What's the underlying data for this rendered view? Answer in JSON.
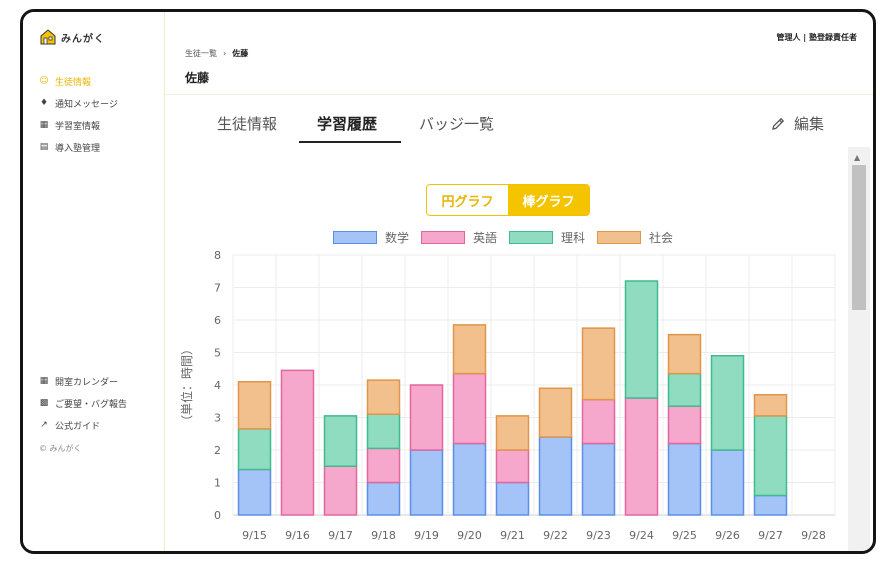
{
  "app": {
    "logo_text": "みんがく"
  },
  "sidebar": {
    "items": [
      {
        "icon": "person-icon",
        "label": "生徒情報",
        "active": true
      },
      {
        "icon": "bell-icon",
        "label": "通知メッセージ",
        "active": false
      },
      {
        "icon": "calendar-icon",
        "label": "学習室情報",
        "active": false
      },
      {
        "icon": "building-icon",
        "label": "導入塾管理",
        "active": false
      }
    ],
    "bottom_items": [
      {
        "icon": "calendar-icon",
        "label": "開室カレンダー"
      },
      {
        "icon": "chat-icon",
        "label": "ご要望・バグ報告"
      },
      {
        "icon": "external-link-icon",
        "label": "公式ガイド"
      }
    ],
    "copyright": "© みんがく"
  },
  "header": {
    "user_info": "管理人 | 塾登録責任者",
    "breadcrumb": {
      "parent": "生徒一覧",
      "separator": "›",
      "current": "佐藤"
    },
    "title": "佐藤"
  },
  "tabs": {
    "items": [
      {
        "label": "生徒情報",
        "active": false
      },
      {
        "label": "学習履歴",
        "active": true
      },
      {
        "label": "バッジ一覧",
        "active": false
      }
    ],
    "edit_label": "編集"
  },
  "chart_toggle": {
    "pie_label": "円グラフ",
    "bar_label": "棒グラフ",
    "selected": "bar"
  },
  "chart_data": {
    "type": "bar",
    "stacked": true,
    "categories": [
      "9/15",
      "9/16",
      "9/17",
      "9/18",
      "9/19",
      "9/20",
      "9/21",
      "9/22",
      "9/23",
      "9/24",
      "9/25",
      "9/26",
      "9/27",
      "9/28"
    ],
    "series": [
      {
        "name": "数学",
        "color": "#a4c3f7",
        "border": "#5b8fe6",
        "values": [
          1.4,
          0,
          0,
          1.0,
          2.0,
          2.2,
          1.0,
          2.4,
          2.2,
          0,
          2.2,
          2.0,
          0.6,
          0
        ]
      },
      {
        "name": "英語",
        "color": "#f5a8cb",
        "border": "#e3669e",
        "values": [
          0,
          4.45,
          1.5,
          1.05,
          2.0,
          2.15,
          1.0,
          0,
          1.35,
          3.6,
          1.15,
          0,
          0,
          0
        ]
      },
      {
        "name": "理科",
        "color": "#8fdcc0",
        "border": "#3fbb8f",
        "values": [
          1.25,
          0,
          1.55,
          1.05,
          0,
          0,
          0,
          0,
          0,
          3.6,
          1.0,
          2.9,
          2.45,
          0
        ]
      },
      {
        "name": "社会",
        "color": "#f2c08d",
        "border": "#e0954a",
        "values": [
          1.45,
          0,
          0,
          1.05,
          0,
          1.5,
          1.05,
          1.5,
          2.2,
          0,
          1.2,
          0,
          0.65,
          0
        ]
      }
    ],
    "ylabel": "（単位：時間）",
    "ylim": [
      0,
      8
    ],
    "yticks": [
      "0",
      "1",
      "2",
      "3",
      "4",
      "5",
      "6",
      "7",
      "8"
    ],
    "grid": true,
    "legend_position": "top"
  }
}
